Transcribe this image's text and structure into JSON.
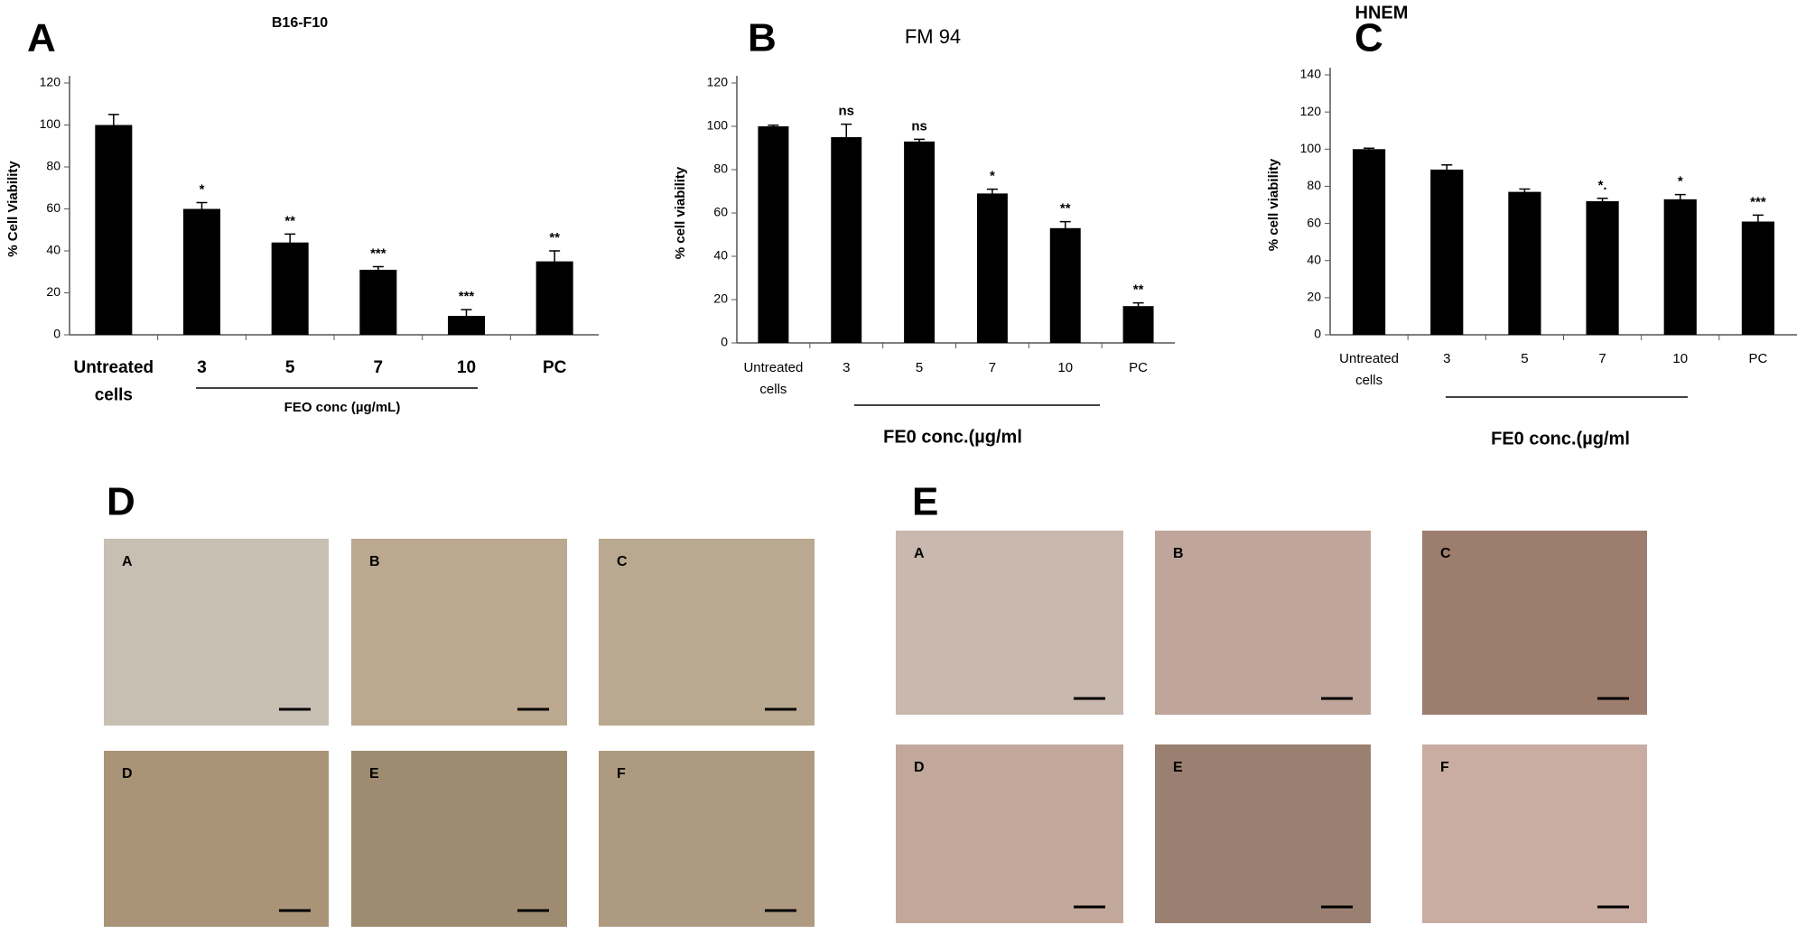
{
  "chart_data": [
    {
      "type": "bar",
      "panel": "A",
      "title": "B16-F10",
      "ylabel": "% Cell Viability",
      "xlabel": "FEO conc (µg/mL)",
      "categories": [
        "Untreated cells",
        "3",
        "5",
        "7",
        "10",
        "PC"
      ],
      "values": [
        100,
        60,
        44,
        31,
        9,
        35
      ],
      "errors": [
        5,
        3,
        4,
        1.5,
        3,
        5
      ],
      "significance": [
        null,
        "*",
        "**",
        "***",
        "***",
        "**"
      ],
      "color": "#000000",
      "ylim": [
        0,
        120
      ],
      "yticks": [
        0,
        20,
        40,
        60,
        80,
        100,
        120
      ],
      "grid": false
    },
    {
      "type": "bar",
      "panel": "B",
      "title": "FM 94",
      "ylabel": "% cell viability",
      "xlabel": "FE0 conc.(µg/ml",
      "categories": [
        "Untreated cells",
        "3",
        "5",
        "7",
        "10",
        "PC"
      ],
      "values": [
        100,
        95,
        93,
        69,
        53,
        17
      ],
      "errors": [
        0.5,
        6,
        1,
        2,
        3,
        1.5
      ],
      "significance": [
        null,
        "ns",
        "ns",
        "*",
        "**",
        "**"
      ],
      "color": "#000000",
      "ylim": [
        0,
        120
      ],
      "yticks": [
        0,
        20,
        40,
        60,
        80,
        100,
        120
      ],
      "grid": false
    },
    {
      "type": "bar",
      "panel": "C",
      "title": "HNEM",
      "ylabel": "% cell viability",
      "xlabel": "FE0 conc.(µg/ml",
      "categories": [
        "Untreated cells",
        "3",
        "5",
        "7",
        "10",
        "PC"
      ],
      "values": [
        100,
        89,
        77,
        72,
        73,
        61
      ],
      "errors": [
        0.5,
        2.5,
        1.5,
        1.5,
        2.5,
        3.5
      ],
      "significance": [
        null,
        null,
        null,
        "*.",
        "*",
        "***"
      ],
      "color": "#000000",
      "ylim": [
        0,
        140
      ],
      "yticks": [
        0,
        20,
        40,
        60,
        80,
        100,
        120,
        140
      ],
      "grid": false
    }
  ],
  "micrographs": [
    {
      "panel": "D",
      "labels": [
        "A",
        "B",
        "C",
        "D",
        "E",
        "F"
      ]
    },
    {
      "panel": "E",
      "labels": [
        "A",
        "B",
        "C",
        "D",
        "E",
        "F"
      ]
    }
  ]
}
